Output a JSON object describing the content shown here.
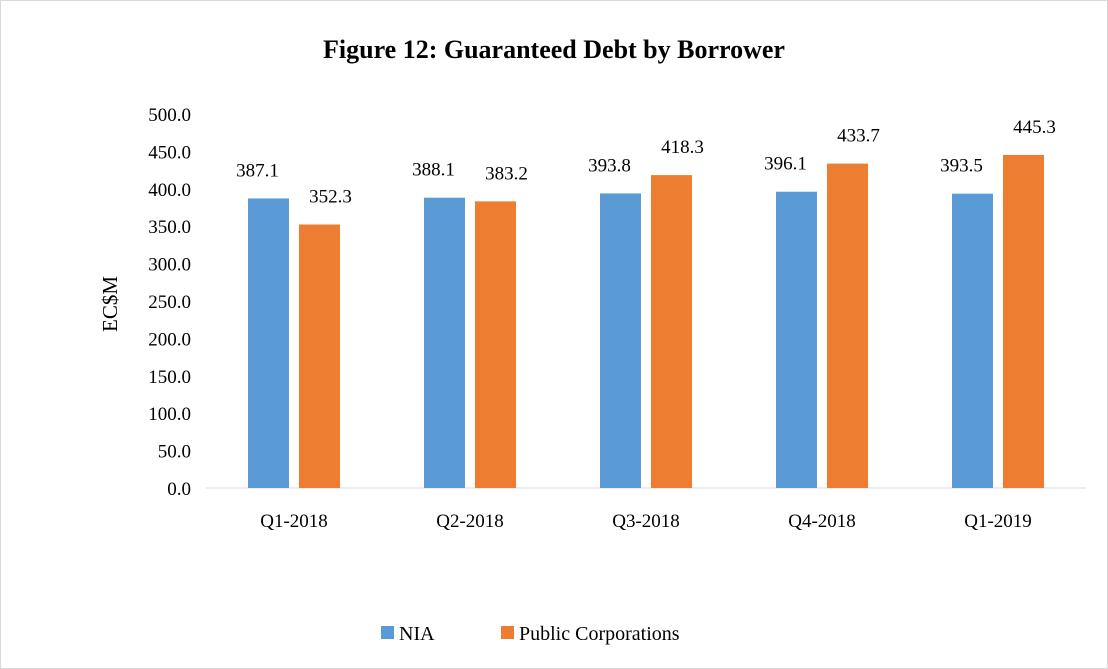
{
  "chart_data": {
    "type": "bar",
    "title": "Figure 12: Guaranteed Debt by Borrower",
    "ylabel": "EC$M",
    "xlabel": "",
    "categories": [
      "Q1-2018",
      "Q2-2018",
      "Q3-2018",
      "Q4-2018",
      "Q1-2019"
    ],
    "series": [
      {
        "name": "NIA",
        "color": "#5b9bd5",
        "values": [
          387.1,
          388.1,
          393.8,
          396.1,
          393.5
        ]
      },
      {
        "name": "Public Corporations",
        "color": "#ed7d31",
        "values": [
          352.3,
          383.2,
          418.3,
          433.7,
          445.3
        ]
      }
    ],
    "ylim": [
      0,
      500
    ],
    "yticks": [
      "0.0",
      "50.0",
      "100.0",
      "150.0",
      "200.0",
      "250.0",
      "300.0",
      "350.0",
      "400.0",
      "450.0",
      "500.0"
    ],
    "data_labels": [
      [
        "387.1",
        "388.1",
        "393.8",
        "396.1",
        "393.5"
      ],
      [
        "352.3",
        "383.2",
        "418.3",
        "433.7",
        "445.3"
      ]
    ],
    "grid": false,
    "legend_position": "bottom"
  }
}
